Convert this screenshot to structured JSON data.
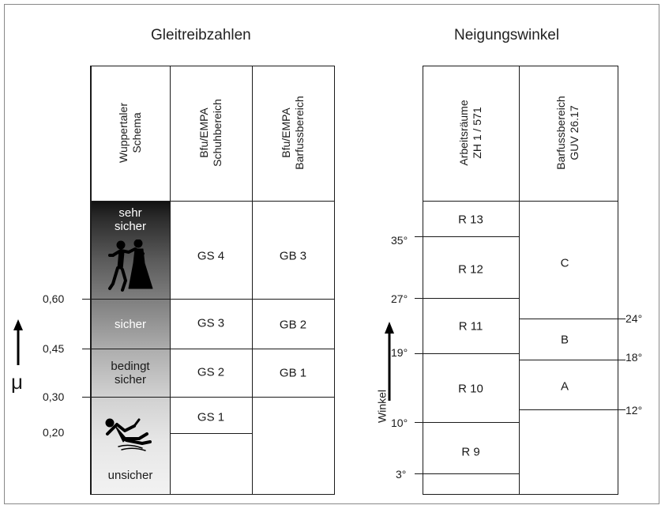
{
  "left_table": {
    "title": "Gleitreibzahlen",
    "headers": [
      [
        "Wuppertaler",
        "Schema"
      ],
      [
        "Bfu/EMPA",
        "Schuhbereich"
      ],
      [
        "Bfu/EMPA",
        "Barfussbereich"
      ]
    ],
    "schema_levels": [
      "sehr",
      "sicher",
      "sicher",
      "bedingt",
      "sicher",
      "unsicher"
    ],
    "schuh_classes": [
      "GS 4",
      "GS 3",
      "GS 2",
      "GS 1"
    ],
    "barfuss_classes": [
      "GB 3",
      "GB 2",
      "GB 1"
    ],
    "mu_ticks": [
      "0,60",
      "0,45",
      "0,30",
      "0,20"
    ],
    "mu_symbol": "μ",
    "icons": [
      "dancing-couple-icon",
      "slipping-person-icon"
    ]
  },
  "right_table": {
    "title": "Neigungswinkel",
    "headers": [
      [
        "Arbeitsräume",
        "ZH 1 / 571"
      ],
      [
        "Barfussbereich",
        "GUV 26.17"
      ]
    ],
    "work_classes": [
      "R 13",
      "R 12",
      "R 11",
      "R 10",
      "R 9"
    ],
    "barefoot_classes": [
      "C",
      "B",
      "A"
    ],
    "left_angles": [
      "35°",
      "27°",
      "19°",
      "10°",
      "3°"
    ],
    "right_angles": [
      "24°",
      "18°",
      "12°"
    ],
    "axis_label": "Winkel"
  },
  "colors": {
    "line": "#1a1a1a",
    "gradient_dark": "#111111",
    "gradient_light": "#f0f0f0"
  }
}
